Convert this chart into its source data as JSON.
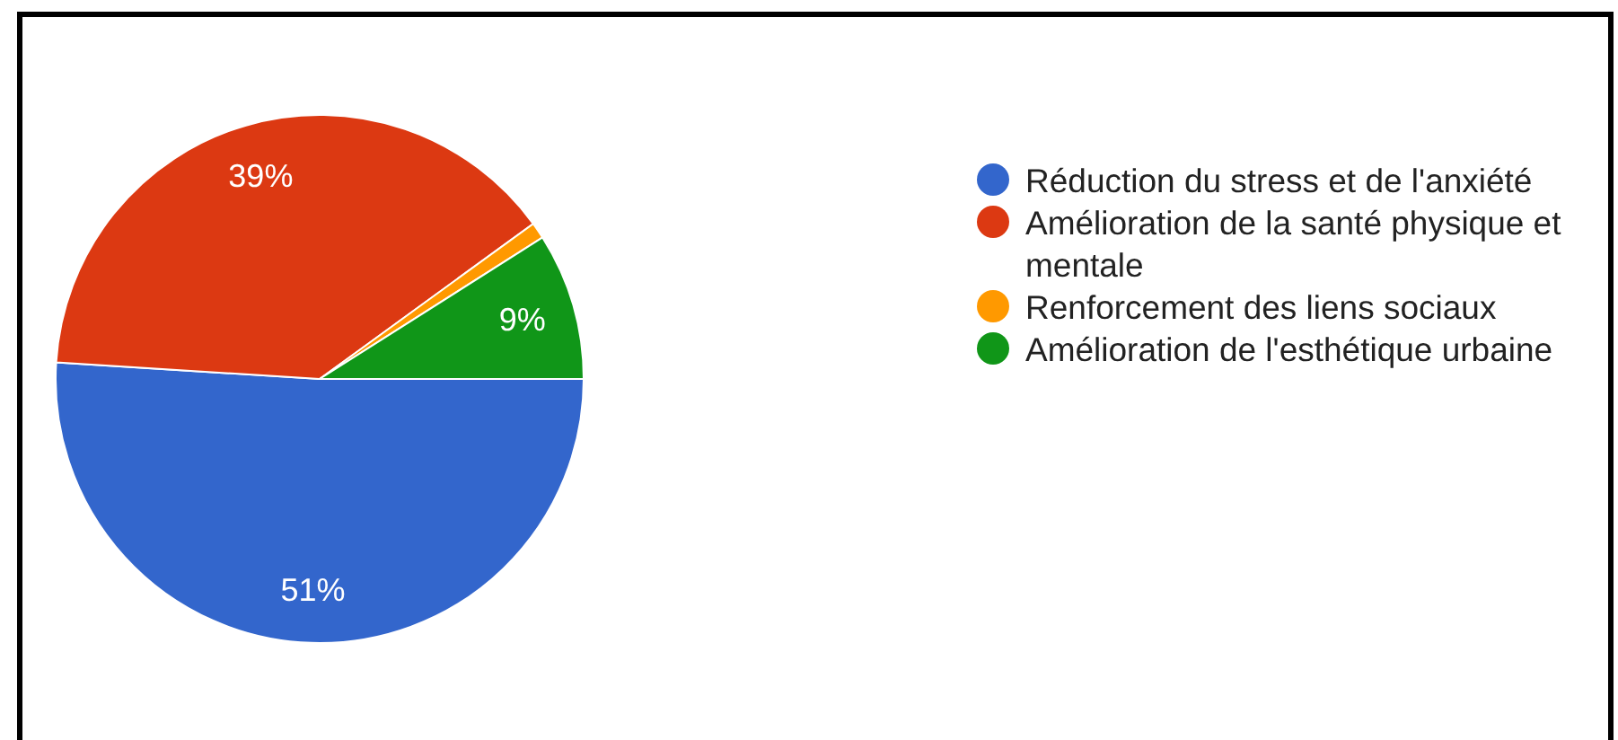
{
  "chart_data": {
    "type": "pie",
    "categories": [
      "Réduction du stress et de l'anxiété",
      "Amélioration de la santé physique et mentale",
      "Renforcement des liens sociaux",
      "Amélioration de l'esthétique urbaine"
    ],
    "values": [
      51,
      39,
      1,
      9
    ],
    "colors": [
      "#3366cc",
      "#dc3912",
      "#ff9900",
      "#109618"
    ],
    "value_labels": [
      "51%",
      "39%",
      null,
      "9%"
    ],
    "legend": "top right"
  }
}
